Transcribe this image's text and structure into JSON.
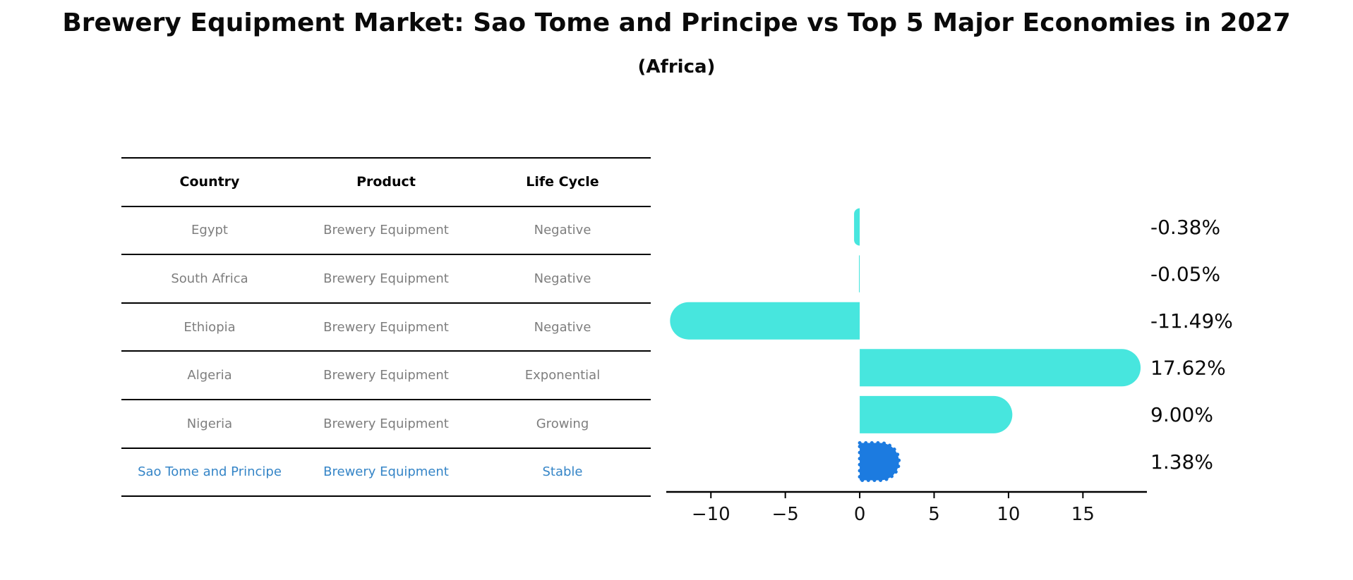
{
  "header": {
    "title": "Brewery Equipment Market: Sao Tome and Principe vs Top 5 Major Economies in 2027",
    "subtitle": "(Africa)"
  },
  "table": {
    "columns": [
      "Country",
      "Product",
      "Life Cycle"
    ],
    "rows": [
      {
        "country": "Egypt",
        "product": "Brewery Equipment",
        "life_cycle": "Negative",
        "highlighted": false
      },
      {
        "country": "South Africa",
        "product": "Brewery Equipment",
        "life_cycle": "Negative",
        "highlighted": false
      },
      {
        "country": "Ethiopia",
        "product": "Brewery Equipment",
        "life_cycle": "Negative",
        "highlighted": false
      },
      {
        "country": "Algeria",
        "product": "Brewery Equipment",
        "life_cycle": "Exponential",
        "highlighted": false
      },
      {
        "country": "Nigeria",
        "product": "Brewery Equipment",
        "life_cycle": "Growing",
        "highlighted": false
      },
      {
        "country": "Sao Tome and Principe",
        "product": "Brewery Equipment",
        "life_cycle": "Stable",
        "highlighted": true
      }
    ]
  },
  "chart_data": {
    "type": "bar",
    "orientation": "horizontal",
    "title": "",
    "xlabel": "",
    "ylabel": "",
    "categories": [
      "Egypt",
      "South Africa",
      "Ethiopia",
      "Algeria",
      "Nigeria",
      "Sao Tome and Principe"
    ],
    "values": [
      -0.38,
      -0.05,
      -11.49,
      17.62,
      9.0,
      1.38
    ],
    "value_labels": [
      "-0.38%",
      "-0.05%",
      "-11.49%",
      "17.62%",
      "9.00%",
      "1.38%"
    ],
    "x_ticks": [
      -10,
      -5,
      0,
      5,
      10,
      15
    ],
    "x_tick_labels": [
      "−10",
      "−5",
      "0",
      "5",
      "10",
      "15"
    ],
    "xlim": [
      -13.0,
      19.3
    ],
    "grid": false,
    "legend": false,
    "highlight_index": 5,
    "highlight_style": "dashed-outline"
  },
  "colors": {
    "bar_default": "#47E6DE",
    "bar_highlight": "#1C7BE0",
    "highlight_text": "#3585C7",
    "row_text": "#7E7E7E",
    "axis": "#000000",
    "label_text": "#0A0A0A"
  }
}
